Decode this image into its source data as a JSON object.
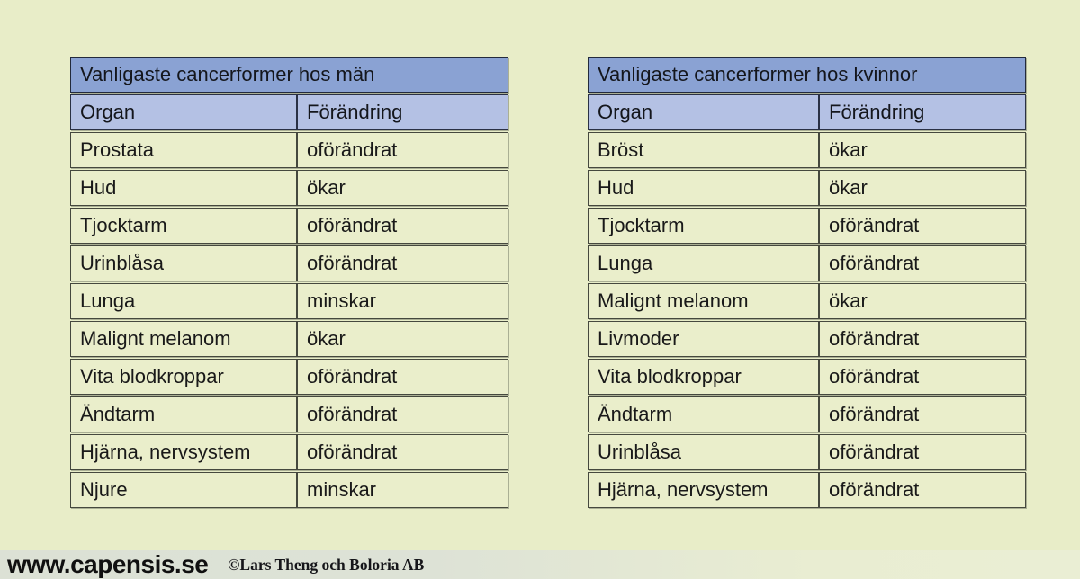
{
  "colors": {
    "page_background": "#e8edc8",
    "cell_background": "#eaeecb",
    "title_row_background": "#8aa2d3",
    "header_row_background": "#b4c1e4",
    "cell_border": "#45483e",
    "text": "#191919",
    "footer_background_left": "#dce1d5",
    "footer_background_right": "#eaeed4"
  },
  "tables": [
    {
      "title": "Vanligaste cancerformer hos män",
      "columns": [
        "Organ",
        "Förändring"
      ],
      "rows": [
        [
          "Prostata",
          "oförändrat"
        ],
        [
          "Hud",
          "ökar"
        ],
        [
          "Tjocktarm",
          "oförändrat"
        ],
        [
          "Urinblåsa",
          "oförändrat"
        ],
        [
          "Lunga",
          "minskar"
        ],
        [
          "Malignt melanom",
          "ökar"
        ],
        [
          "Vita blodkroppar",
          "oförändrat"
        ],
        [
          "Ändtarm",
          "oförändrat"
        ],
        [
          "Hjärna, nervsystem",
          "oförändrat"
        ],
        [
          "Njure",
          "minskar"
        ]
      ]
    },
    {
      "title": "Vanligaste cancerformer hos kvinnor",
      "columns": [
        "Organ",
        "Förändring"
      ],
      "rows": [
        [
          "Bröst",
          "ökar"
        ],
        [
          "Hud",
          "ökar"
        ],
        [
          "Tjocktarm",
          "oförändrat"
        ],
        [
          "Lunga",
          "oförändrat"
        ],
        [
          "Malignt melanom",
          "ökar"
        ],
        [
          "Livmoder",
          "oförändrat"
        ],
        [
          "Vita blodkroppar",
          "oförändrat"
        ],
        [
          "Ändtarm",
          "oförändrat"
        ],
        [
          "Urinblåsa",
          "oförändrat"
        ],
        [
          "Hjärna, nervsystem",
          "oförändrat"
        ]
      ]
    }
  ],
  "footer": {
    "site": "www.capensis.se",
    "copyright": "©Lars Theng och Boloria AB"
  }
}
